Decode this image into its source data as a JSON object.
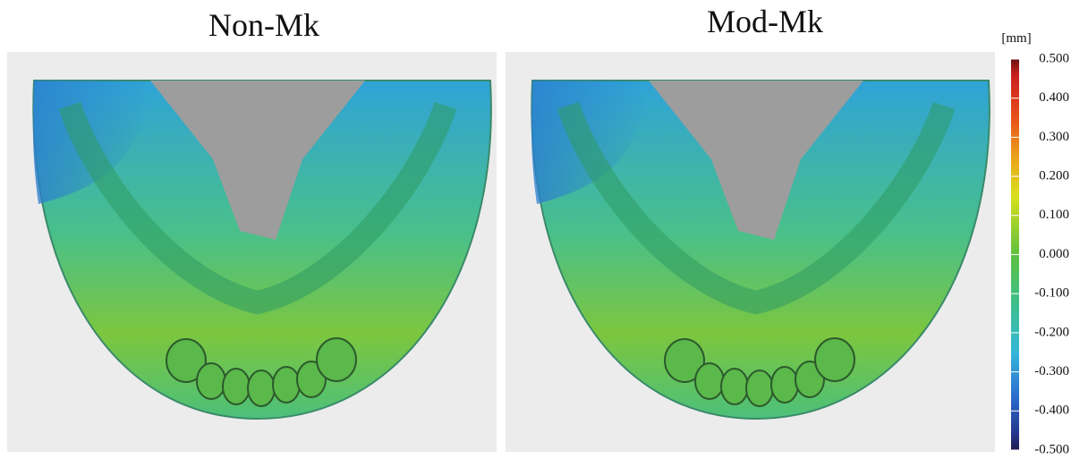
{
  "panels": [
    {
      "title": "Non-Mk"
    },
    {
      "title": "Mod-Mk"
    }
  ],
  "colorbar": {
    "unit": "[mm]",
    "range": [
      -0.5,
      0.5
    ],
    "ticks": [
      {
        "value": 0.5,
        "label": "0.500"
      },
      {
        "value": 0.4,
        "label": "0.400"
      },
      {
        "value": 0.3,
        "label": "0.300"
      },
      {
        "value": 0.2,
        "label": "0.200"
      },
      {
        "value": 0.1,
        "label": "0.100"
      },
      {
        "value": 0,
        "label": "0.000"
      },
      {
        "value": -0.1,
        "label": "-0.100"
      },
      {
        "value": -0.2,
        "label": "-0.200"
      },
      {
        "value": -0.3,
        "label": "-0.300"
      },
      {
        "value": -0.4,
        "label": "-0.400"
      },
      {
        "value": -0.5,
        "label": "-0.500"
      }
    ]
  }
}
